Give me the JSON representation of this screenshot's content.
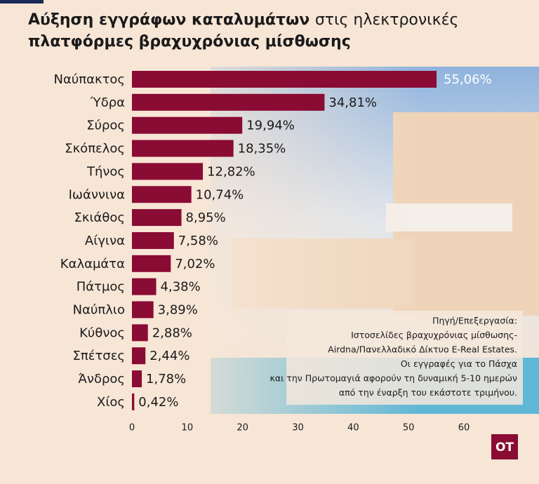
{
  "chart_data": {
    "type": "bar",
    "orientation": "horizontal",
    "title": [
      "Αύξηση εγγράφων καταλυμάτων",
      "στις ηλεκτρονικές",
      "πλατφόρμες βραχυχρόνιας μίσθωσης"
    ],
    "categories": [
      "Ναύπακτος",
      "Ύδρα",
      "Σύρος",
      "Σκόπελος",
      "Τήνος",
      "Ιωάννινα",
      "Σκιάθος",
      "Αίγινα",
      "Καλαμάτα",
      "Πάτμος",
      "Ναύπλιο",
      "Κύθνος",
      "Σπέτσες",
      "Άνδρος",
      "Χίος"
    ],
    "values": [
      55.06,
      34.81,
      19.94,
      18.35,
      12.82,
      10.74,
      8.95,
      7.58,
      7.02,
      4.38,
      3.89,
      2.88,
      2.44,
      1.78,
      0.42
    ],
    "value_labels": [
      "55,06%",
      "34,81%",
      "19,94%",
      "18,35%",
      "12,82%",
      "10,74%",
      "8,95%",
      "7,58%",
      "7,02%",
      "4,38%",
      "3,89%",
      "2,88%",
      "2,44%",
      "1,78%",
      "0,42%"
    ],
    "color": "#8a0b33",
    "xlim": [
      0,
      60
    ],
    "xticks": [
      0,
      10,
      20,
      30,
      40,
      50,
      60
    ],
    "source": [
      "Πηγή/Επεξεργασία:",
      "Ιστοσελίδες βραχυχρόνιας μίσθωσης-",
      "Airdna/Πανελλαδικό Δίκτυο E-Real Estates.",
      "Οι εγγραφές για το Πάσχα",
      "και την Πρωτομαγιά αφορούν τη δυναμική 5-10 ημερών",
      "από την έναρξη του εκάστοτε τριμήνου."
    ],
    "logo": "ΟΤ"
  }
}
